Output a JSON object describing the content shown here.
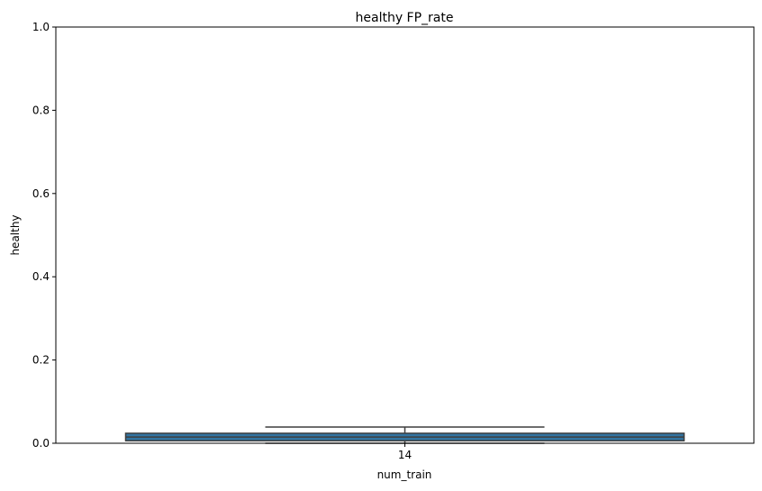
{
  "chart_data": {
    "type": "box",
    "title": "healthy FP_rate",
    "xlabel": "num_train",
    "ylabel": "healthy",
    "categories": [
      "14"
    ],
    "ylim": [
      0,
      1.0
    ],
    "yticks": [
      "0.0",
      "0.2",
      "0.4",
      "0.6",
      "0.8",
      "1.0"
    ],
    "ytick_values": [
      0,
      0.2,
      0.4,
      0.6,
      0.8,
      1.0
    ],
    "boxes": [
      {
        "category": "14",
        "min": 0.0,
        "q1": 0.006,
        "median": 0.015,
        "q3": 0.024,
        "max": 0.039
      }
    ],
    "grid": false,
    "colors": {
      "box_fill": "#3274a1",
      "box_edge": "#3f3f3f",
      "whisker": "#3f3f3f"
    }
  }
}
